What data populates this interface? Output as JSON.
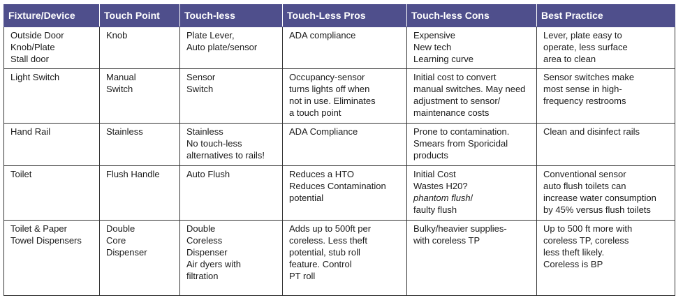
{
  "headers": [
    "Fixture/Device",
    "Touch Point",
    "Touch-less",
    "Touch-Less Pros",
    "Touch-less Cons",
    "Best Practice"
  ],
  "rows": [
    {
      "fixture": "Outside Door\nKnob/Plate\nStall door",
      "touch_point": "Knob",
      "touch_less": "Plate Lever,\nAuto plate/sensor",
      "pros": "ADA compliance",
      "cons": "Expensive\nNew tech\nLearning curve",
      "best_practice": "Lever, plate easy to\noperate, less surface\narea to clean"
    },
    {
      "fixture": "Light Switch",
      "touch_point": "Manual\nSwitch",
      "touch_less": "Sensor\nSwitch",
      "pros": "Occupancy-sensor\nturns lights off when\nnot in use. Eliminates\na touch point",
      "cons": "Initial cost to convert\nmanual switches. May need\nadjustment to sensor/\nmaintenance costs",
      "best_practice": "Sensor switches make\nmost sense in high-\nfrequency restrooms"
    },
    {
      "fixture": "Hand Rail",
      "touch_point": "Stainless",
      "touch_less": "Stainless\nNo touch-less\nalternatives to rails!",
      "pros": "ADA Compliance",
      "cons": "Prone to contamination.\nSmears from Sporicidal\nproducts",
      "best_practice": "Clean and disinfect rails"
    },
    {
      "fixture": "Toilet",
      "touch_point": "Flush Handle",
      "touch_less": "Auto Flush",
      "pros": "Reduces a HTO\nReduces  Contamination\npotential",
      "cons_lines": [
        "Initial Cost",
        "Wastes H20?"
      ],
      "cons_italic": "phantom  flush",
      "cons_after_italic": "/",
      "cons_last": "faulty flush",
      "best_practice": "Conventional sensor\nauto flush toilets can\nincrease water consumption\nby 45% versus flush toilets"
    },
    {
      "fixture": "Toilet & Paper\nTowel Dispensers",
      "touch_point": "Double\nCore\nDispenser",
      "touch_less": "Double\nCoreless\nDispenser\nAir dyers with\nfiltration",
      "pros": "Adds up to 500ft per\ncoreless. Less theft\npotential, stub roll\nfeature. Control\nPT roll",
      "cons": "Bulky/heavier supplies-\nwith coreless TP",
      "best_practice": "Up to 500 ft more with\ncoreless TP, coreless\nless theft likely.\nCoreless is BP"
    }
  ]
}
